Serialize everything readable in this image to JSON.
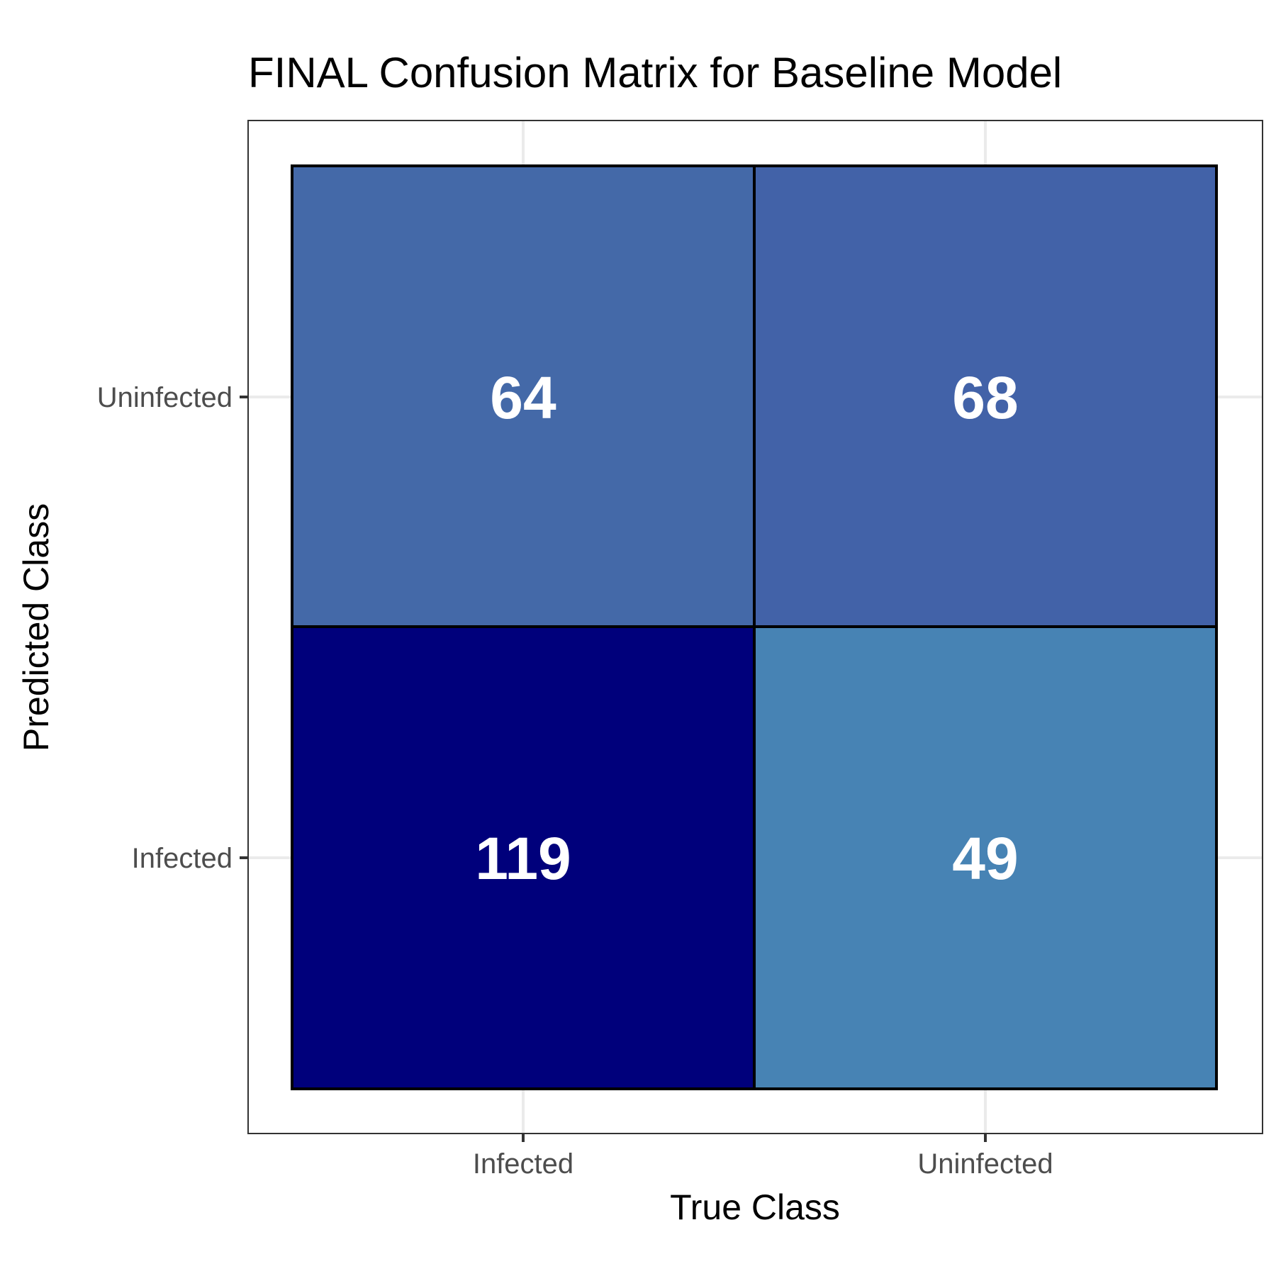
{
  "chart_data": {
    "type": "heatmap",
    "title": "FINAL Confusion Matrix for Baseline Model",
    "xlabel": "True Class",
    "ylabel": "Predicted Class",
    "x_categories": [
      "Infected",
      "Uninfected"
    ],
    "y_categories": [
      "Infected",
      "Uninfected"
    ],
    "cells": [
      {
        "true": "Infected",
        "predicted": "Uninfected",
        "value": 64,
        "color": "#4469a8"
      },
      {
        "true": "Uninfected",
        "predicted": "Uninfected",
        "value": 68,
        "color": "#4262a8"
      },
      {
        "true": "Infected",
        "predicted": "Infected",
        "value": 119,
        "color": "#00007b"
      },
      {
        "true": "Uninfected",
        "predicted": "Infected",
        "value": 49,
        "color": "#4783b4"
      }
    ],
    "grid": true,
    "legend": "none"
  }
}
